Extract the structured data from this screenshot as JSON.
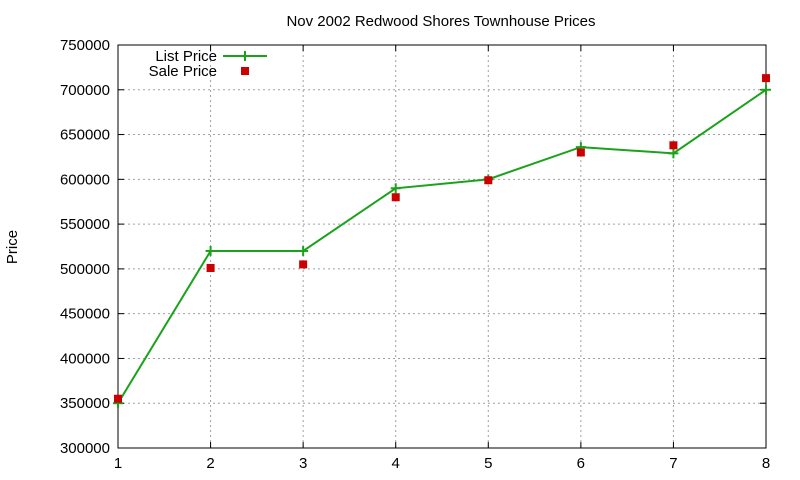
{
  "chart_data": {
    "type": "line",
    "title": "Nov 2002 Redwood Shores Townhouse Prices",
    "xlabel": "",
    "ylabel": "Price",
    "x": [
      1,
      2,
      3,
      4,
      5,
      6,
      7,
      8
    ],
    "xlim": [
      1,
      8
    ],
    "ylim": [
      300000,
      750000
    ],
    "x_ticks": [
      "1",
      "2",
      "3",
      "4",
      "5",
      "6",
      "7",
      "8"
    ],
    "y_ticks": [
      "300000",
      "350000",
      "400000",
      "450000",
      "500000",
      "550000",
      "600000",
      "650000",
      "700000",
      "750000"
    ],
    "grid": true,
    "legend_position": "top-left",
    "series": [
      {
        "name": "List Price",
        "style": "line with plus markers",
        "color": "#1aa31a",
        "values": [
          350000,
          520000,
          520000,
          590000,
          600000,
          636000,
          629000,
          700000
        ]
      },
      {
        "name": "Sale Price",
        "style": "square markers",
        "color": "#cc0000",
        "values": [
          355000,
          501000,
          505000,
          580000,
          599000,
          630000,
          638000,
          713000
        ]
      }
    ]
  }
}
